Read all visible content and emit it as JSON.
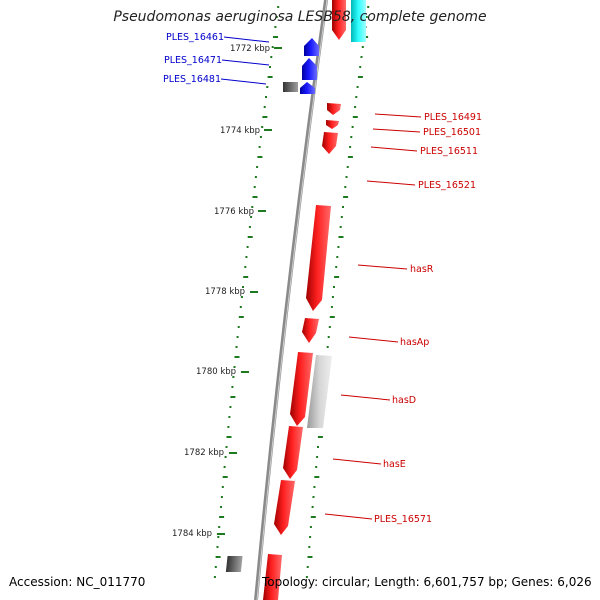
{
  "title": "Pseudomonas aeruginosa LESB58, complete genome",
  "footer": {
    "accession": "Accession: NC_011770",
    "info": "Topology: circular; Length: 6,601,757 bp; Genes: 6,026"
  },
  "scale_labels": [
    "1772 kbp",
    "1774 kbp",
    "1776 kbp",
    "1778 kbp",
    "1780 kbp",
    "1782 kbp",
    "1784 kbp"
  ],
  "genes": [
    {
      "name": "PLES_16461",
      "strand": "minus",
      "color": "#0000cc"
    },
    {
      "name": "PLES_16471",
      "strand": "minus",
      "color": "#0000cc"
    },
    {
      "name": "PLES_16481",
      "strand": "minus",
      "color": "#0000cc"
    },
    {
      "name": "PLES_16491",
      "strand": "plus",
      "color": "#cc0000"
    },
    {
      "name": "PLES_16501",
      "strand": "plus",
      "color": "#cc0000"
    },
    {
      "name": "PLES_16511",
      "strand": "plus",
      "color": "#cc0000"
    },
    {
      "name": "PLES_16521",
      "strand": "plus",
      "color": "#cc0000"
    },
    {
      "name": "hasR",
      "strand": "plus",
      "color": "#cc0000"
    },
    {
      "name": "hasAp",
      "strand": "plus",
      "color": "#cc0000"
    },
    {
      "name": "hasD",
      "strand": "plus",
      "color": "#cc0000"
    },
    {
      "name": "hasE",
      "strand": "plus",
      "color": "#cc0000"
    },
    {
      "name": "PLES_16571",
      "strand": "plus",
      "color": "#cc0000"
    }
  ],
  "colors": {
    "forward_cds": "#ff0000",
    "reverse_cds": "#0000ff",
    "other_feature": "#cccccc",
    "dark_feature": "#606060",
    "rna_feature": "#00ffff",
    "backbone": "#888888",
    "gc_ticks": "#1e7a1e"
  }
}
